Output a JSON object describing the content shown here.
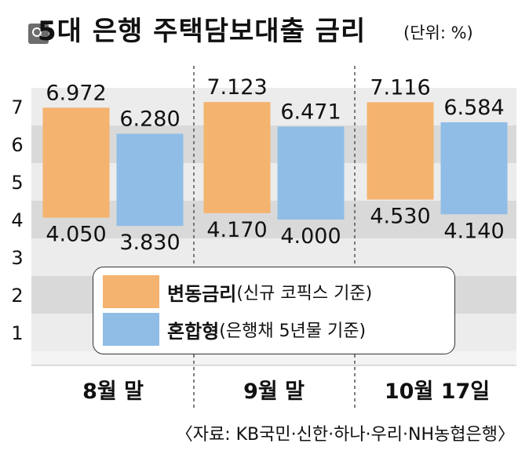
{
  "header": {
    "title": "5대 은행 주택담보대출 금리",
    "unit": "(단위: %)",
    "search_icon": "search-icon"
  },
  "colors": {
    "variable": "#f4b36f",
    "mixed": "#8fbde6",
    "band_dark": "#d9d9d9",
    "band_light": "#ececec"
  },
  "legend": {
    "items": [
      {
        "name": "변동금리",
        "desc": "(신규 코픽스 기준)"
      },
      {
        "name": "혼합형",
        "desc": "(은행채 5년물 기준)"
      }
    ]
  },
  "source": "〈자료: KB국민·신한·하나·우리·NH농협은행〉",
  "chart_data": {
    "type": "bar",
    "title": "5대 은행 주택담보대출 금리",
    "unit": "(단위: %)",
    "categories": [
      "8월 말",
      "9월 말",
      "10월 17일"
    ],
    "yticks": [
      "1",
      "2",
      "3",
      "4",
      "5",
      "6",
      "7"
    ],
    "ylim": [
      0,
      8
    ],
    "series": [
      {
        "name": "변동금리",
        "desc": "(신규 코픽스 기준)",
        "low": [
          4.05,
          4.17,
          4.53
        ],
        "high": [
          6.972,
          7.123,
          7.116
        ],
        "low_labels": [
          "4.050",
          "4.170",
          "4.530"
        ],
        "high_labels": [
          "6.972",
          "7.123",
          "7.116"
        ]
      },
      {
        "name": "혼합형",
        "desc": "(은행채 5년물 기준)",
        "low": [
          3.83,
          4.0,
          4.14
        ],
        "high": [
          6.28,
          6.471,
          6.584
        ],
        "low_labels": [
          "3.830",
          "4.000",
          "4.140"
        ],
        "high_labels": [
          "6.280",
          "6.471",
          "6.584"
        ]
      }
    ],
    "grid": "alternating bands",
    "legend_position": "center"
  }
}
